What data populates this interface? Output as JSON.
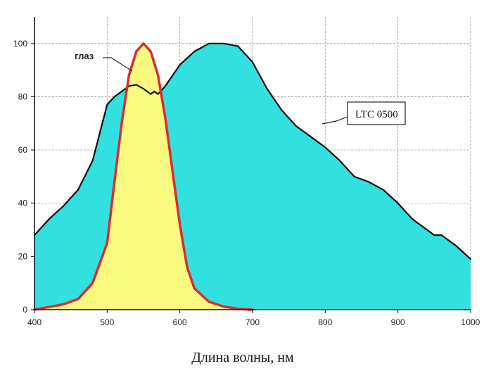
{
  "chart_data": {
    "type": "area",
    "title": "",
    "xlabel": "Длина волны, нм",
    "ylabel": "",
    "xlim": [
      400,
      1000
    ],
    "ylim": [
      0,
      110
    ],
    "xticks": [
      400,
      500,
      600,
      700,
      800,
      900,
      1000
    ],
    "yticks": [
      0,
      20,
      40,
      60,
      80,
      100
    ],
    "xtick_labels": [
      "400",
      "500",
      "600",
      "700",
      "800",
      "900",
      "1000"
    ],
    "ytick_labels": [
      "0",
      "20",
      "40",
      "60",
      "80",
      "100"
    ],
    "grid": true,
    "series": [
      {
        "name": "LTC 0500",
        "label": "LTC 0500",
        "fill": "#33e0e0",
        "line": "#111111",
        "x": [
          400,
          410,
          420,
          440,
          460,
          480,
          500,
          510,
          520,
          530,
          540,
          550,
          560,
          565,
          570,
          580,
          590,
          600,
          620,
          640,
          660,
          680,
          700,
          720,
          740,
          760,
          780,
          800,
          820,
          840,
          860,
          880,
          900,
          920,
          940,
          950,
          960,
          980,
          1000
        ],
        "y": [
          28,
          31,
          34,
          39,
          45,
          56,
          77,
          80,
          82,
          84,
          84.5,
          83,
          81,
          82,
          81,
          84,
          88,
          92,
          97,
          100,
          100,
          99,
          93,
          83,
          75,
          69,
          65,
          61,
          56,
          50,
          48,
          45,
          40,
          34,
          30,
          28,
          28,
          24,
          19
        ]
      },
      {
        "name": "глаз",
        "label": "глаз",
        "fill": "#fafa80",
        "line": "#d92e2e",
        "x": [
          400,
          420,
          440,
          460,
          480,
          500,
          510,
          520,
          530,
          540,
          550,
          560,
          570,
          580,
          590,
          600,
          610,
          620,
          640,
          660,
          680,
          700
        ],
        "y": [
          0,
          1,
          2,
          4,
          10,
          25,
          48,
          70,
          88,
          97,
          100,
          97,
          88,
          72,
          52,
          32,
          16,
          8,
          3,
          1.2,
          0.3,
          0
        ]
      }
    ],
    "annotations": [
      "глаз",
      "LTC 0500"
    ]
  }
}
